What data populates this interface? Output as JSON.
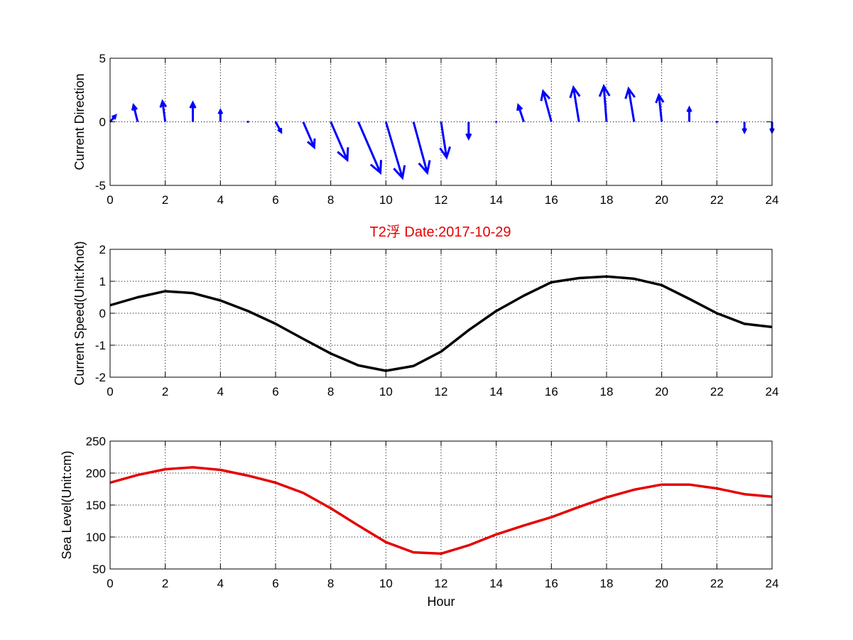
{
  "title": "T2浮   Date:2017-10-29",
  "colors": {
    "direction": "#0000ff",
    "speed": "#000000",
    "sea_level": "#e60000",
    "title": "#e60000"
  },
  "chart_data": [
    {
      "type": "quiver",
      "title": "",
      "xlabel": "",
      "ylabel": "Current Direction",
      "xlim": [
        0,
        24
      ],
      "ylim": [
        -5,
        5
      ],
      "xticks": [
        "0",
        "2",
        "4",
        "6",
        "8",
        "10",
        "12",
        "14",
        "16",
        "18",
        "20",
        "22",
        "24"
      ],
      "yticks": [
        "-5",
        "0",
        "5"
      ],
      "grid": true,
      "color": "#0000ff",
      "x": [
        0,
        1,
        2,
        3,
        4,
        5,
        6,
        7,
        8,
        9,
        10,
        11,
        12,
        13,
        14,
        15,
        16,
        17,
        18,
        19,
        20,
        21,
        22,
        23,
        24
      ],
      "u": [
        0.2,
        -0.15,
        -0.1,
        0,
        0,
        0,
        0.2,
        0.4,
        0.6,
        0.8,
        0.6,
        0.5,
        0.2,
        0,
        0,
        -0.2,
        -0.3,
        -0.2,
        -0.1,
        -0.2,
        -0.1,
        0,
        0,
        0,
        0
      ],
      "v": [
        0.5,
        1.3,
        1.6,
        1.5,
        0.9,
        0.1,
        -0.8,
        -2.0,
        -3.0,
        -4.0,
        -4.4,
        -4.0,
        -2.8,
        -1.3,
        -0.1,
        1.3,
        2.4,
        2.7,
        2.8,
        2.6,
        2.1,
        1.1,
        0.1,
        -0.8,
        -0.8
      ]
    },
    {
      "type": "line",
      "title": "",
      "xlabel": "",
      "ylabel": "Current Speed(Unit:Knot)",
      "xlim": [
        0,
        24
      ],
      "ylim": [
        -2,
        2
      ],
      "xticks": [
        "0",
        "2",
        "4",
        "6",
        "8",
        "10",
        "12",
        "14",
        "16",
        "18",
        "20",
        "22",
        "24"
      ],
      "yticks": [
        "-2",
        "-1",
        "0",
        "1",
        "2"
      ],
      "grid": true,
      "color": "#000000",
      "x": [
        0,
        1,
        2,
        3,
        4,
        5,
        6,
        7,
        8,
        9,
        10,
        11,
        12,
        13,
        14,
        15,
        16,
        17,
        18,
        19,
        20,
        21,
        22,
        23,
        24
      ],
      "y": [
        0.25,
        0.5,
        0.69,
        0.63,
        0.4,
        0.07,
        -0.33,
        -0.8,
        -1.26,
        -1.63,
        -1.8,
        -1.65,
        -1.2,
        -0.53,
        0.07,
        0.55,
        0.97,
        1.1,
        1.15,
        1.08,
        0.88,
        0.45,
        0.0,
        -0.33,
        -0.43
      ]
    },
    {
      "type": "line",
      "title": "",
      "xlabel": "Hour",
      "ylabel": "Sea Level(Unit:cm)",
      "xlim": [
        0,
        24
      ],
      "ylim": [
        50,
        250
      ],
      "xticks": [
        "0",
        "2",
        "4",
        "6",
        "8",
        "10",
        "12",
        "14",
        "16",
        "18",
        "20",
        "22",
        "24"
      ],
      "yticks": [
        "50",
        "100",
        "150",
        "200",
        "250"
      ],
      "grid": true,
      "color": "#e60000",
      "x": [
        0,
        1,
        2,
        3,
        4,
        5,
        6,
        7,
        8,
        9,
        10,
        11,
        12,
        13,
        14,
        15,
        16,
        17,
        18,
        19,
        20,
        21,
        22,
        23,
        24
      ],
      "y": [
        185,
        197,
        206,
        209,
        205,
        196,
        185,
        169,
        145,
        118,
        92,
        76,
        74,
        87,
        104,
        118,
        131,
        147,
        162,
        174,
        182,
        182,
        176,
        167,
        163
      ]
    }
  ]
}
